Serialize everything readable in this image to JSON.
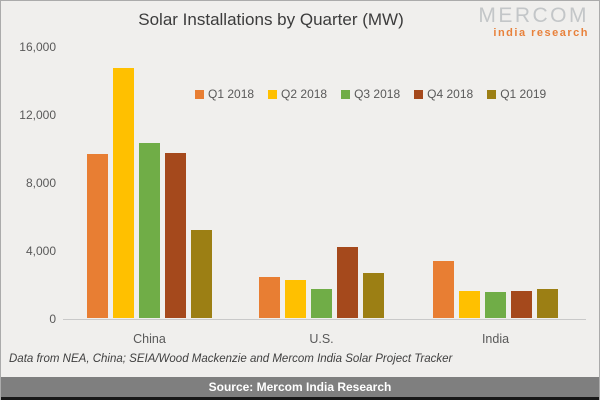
{
  "title": "Solar Installations by Quarter (MW)",
  "logo": {
    "name": "MERCOM",
    "subtitle": "india research",
    "name_color": "#C3C6C8",
    "subtitle_color": "#E8813B"
  },
  "footer": {
    "note": "Data from NEA, China; SEIA/Wood Mackenzie and Mercom India Solar Project Tracker",
    "source": "Source: Mercom India Research"
  },
  "colors": {
    "background": "#F0EFED",
    "axis_text": "#595959",
    "title_text": "#3C3C3C",
    "baseline": "#C9C9C9",
    "source_bar_bg": "#7F7F7F",
    "source_bar_text": "#FFFFFF"
  },
  "chart_data": {
    "type": "bar",
    "title": "Solar Installations by Quarter (MW)",
    "categories": [
      "China",
      "U.S.",
      "India"
    ],
    "series": [
      {
        "name": "Q1 2018",
        "color": "#E87E33",
        "values": [
          9650,
          2400,
          3350
        ]
      },
      {
        "name": "Q2 2018",
        "color": "#FFC000",
        "values": [
          14700,
          2250,
          1600
        ]
      },
      {
        "name": "Q3 2018",
        "color": "#70AD47",
        "values": [
          10250,
          1700,
          1550
        ]
      },
      {
        "name": "Q4 2018",
        "color": "#A5491C",
        "values": [
          9700,
          4150,
          1600
        ]
      },
      {
        "name": "Q1 2019",
        "color": "#9C7F14",
        "values": [
          5150,
          2650,
          1700
        ]
      }
    ],
    "xlabel": "",
    "ylabel": "",
    "ylim": [
      0,
      16000
    ],
    "yticks": [
      {
        "value": 0,
        "label": "0"
      },
      {
        "value": 4000,
        "label": "4,000"
      },
      {
        "value": 8000,
        "label": "8,000"
      },
      {
        "value": 12000,
        "label": "12,000"
      },
      {
        "value": 16000,
        "label": "16,000"
      }
    ],
    "grid": false,
    "legend_position": "top-right-of-plot"
  }
}
